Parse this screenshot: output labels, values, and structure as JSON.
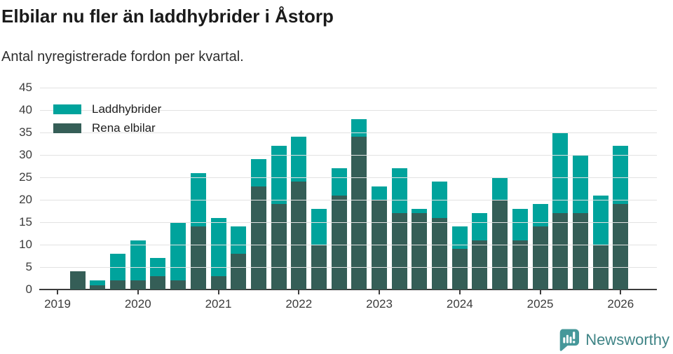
{
  "chart_data": {
    "type": "bar",
    "stacked": true,
    "title": "Elbilar nu fler än laddhybrider i Åstorp",
    "subtitle": "Antal nyregistrerade fordon per kvartal.",
    "categories": [
      "2019 Q1",
      "2019 Q2",
      "2019 Q3",
      "2019 Q4",
      "2020 Q1",
      "2020 Q2",
      "2020 Q3",
      "2020 Q4",
      "2021 Q1",
      "2021 Q2",
      "2021 Q3",
      "2021 Q4",
      "2022 Q1",
      "2022 Q2",
      "2022 Q3",
      "2022 Q4",
      "2023 Q1",
      "2023 Q2",
      "2023 Q3",
      "2023 Q4",
      "2024 Q1",
      "2024 Q2",
      "2024 Q3",
      "2024 Q4",
      "2025 Q1",
      "2025 Q2",
      "2025 Q3",
      "2025 Q4",
      "2026 Q1"
    ],
    "series": [
      {
        "name": "Laddhybrider",
        "color": "#00a39c",
        "values": [
          0,
          0,
          1,
          6,
          9,
          4,
          13,
          12,
          13,
          6,
          6,
          13,
          10,
          8,
          6,
          4,
          3,
          10,
          1,
          8,
          5,
          6,
          5,
          7,
          5,
          18,
          13,
          11,
          13
        ]
      },
      {
        "name": "Rena elbilar",
        "color": "#355e57",
        "values": [
          0,
          4,
          1,
          2,
          2,
          3,
          2,
          14,
          3,
          8,
          23,
          19,
          24,
          10,
          21,
          34,
          20,
          17,
          17,
          16,
          9,
          11,
          20,
          11,
          14,
          17,
          17,
          10,
          19
        ]
      }
    ],
    "stack_order": [
      "Rena elbilar",
      "Laddhybrider"
    ],
    "x_tick_labels": [
      "2019",
      "2020",
      "2021",
      "2022",
      "2023",
      "2024",
      "2025",
      "2026"
    ],
    "y_ticks": [
      0,
      5,
      10,
      15,
      20,
      25,
      30,
      35,
      40,
      45
    ],
    "ylim": [
      0,
      45
    ],
    "grid": true,
    "legend_position": "top-left",
    "axis_color": "#3c3c3c",
    "grid_color": "#e2e2e2"
  },
  "footer": {
    "brand": "Newsworthy",
    "brand_color": "#3f8486",
    "icon_color": "#46989a"
  }
}
